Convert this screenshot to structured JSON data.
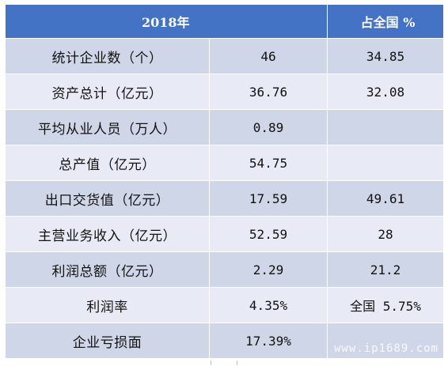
{
  "table": {
    "header": {
      "col1": "2018年",
      "col3": "占全国 %"
    },
    "rows": [
      {
        "label": "统计企业数（个）",
        "value": "46",
        "share": "34.85"
      },
      {
        "label": "资产总计（亿元）",
        "value": "36.76",
        "share": "32.08"
      },
      {
        "label": "平均从业人员（万人）",
        "value": "0.89",
        "share": ""
      },
      {
        "label": "总产值（亿元）",
        "value": "54.75",
        "share": ""
      },
      {
        "label": "出口交货值（亿元）",
        "value": "17.59",
        "share": "49.61"
      },
      {
        "label": "主营业务收入（亿元）",
        "value": "52.59",
        "share": "28"
      },
      {
        "label": "利润总额（亿元）",
        "value": "2.29",
        "share": "21.2"
      },
      {
        "label": "利润率",
        "value": "4.35%",
        "share": "全国 5.75%"
      },
      {
        "label": "企业亏损面",
        "value": "17.39%",
        "share": ""
      }
    ]
  },
  "watermark": "www.ip1689.com",
  "colors": {
    "header_bg": "#4472c4",
    "row_dark": "#cfd6e8",
    "row_light": "#e8ebf5"
  }
}
